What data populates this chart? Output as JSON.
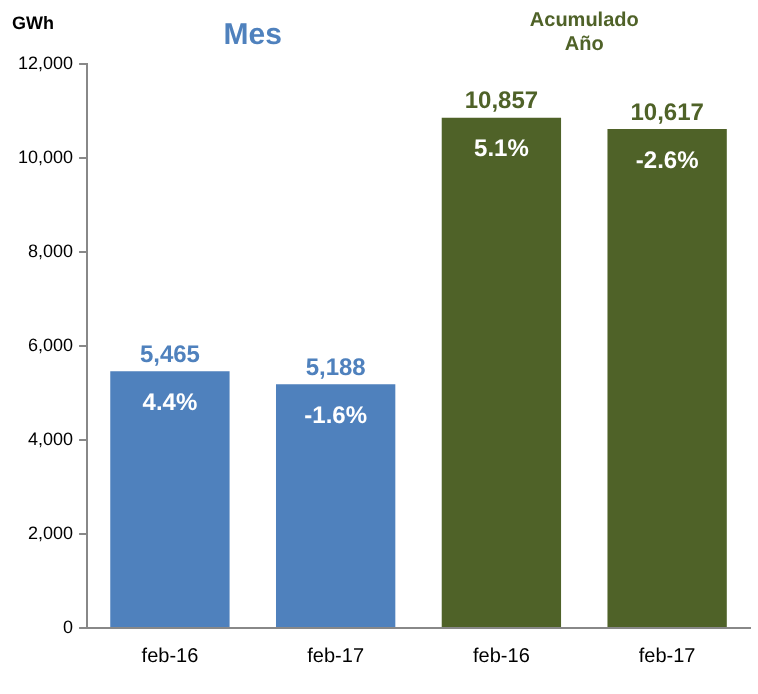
{
  "chart_data": {
    "type": "bar",
    "ylabel": "GWh",
    "categories": [
      "feb-16",
      "feb-17",
      "feb-16",
      "feb-17"
    ],
    "stacked": true,
    "legend": false,
    "grid": false,
    "ylim": [
      0,
      12000
    ],
    "yticks": [
      0,
      {
        "value": 2000,
        "label": "2,000"
      },
      {
        "value": 4000,
        "label": "4,000"
      },
      {
        "value": 6000,
        "label": "6,000"
      },
      {
        "value": 8000,
        "label": "8,000"
      },
      {
        "value": 10000,
        "label": "10,000"
      },
      {
        "value": 12000,
        "label": "12,000"
      }
    ],
    "series": [
      {
        "name": "Mes",
        "color": "#4f81bd",
        "values": [
          5465,
          5188,
          null,
          null
        ],
        "value_labels": [
          "5,465",
          "5,188",
          null,
          null
        ]
      },
      {
        "name": "Acumulado Año",
        "color": "#4f6228",
        "values": [
          null,
          null,
          10857,
          10617
        ],
        "value_labels": [
          null,
          null,
          "10,857",
          "10,617"
        ]
      }
    ],
    "annotations": [
      "4.4%",
      "-1.6%",
      "5.1%",
      "-2.6%"
    ]
  }
}
